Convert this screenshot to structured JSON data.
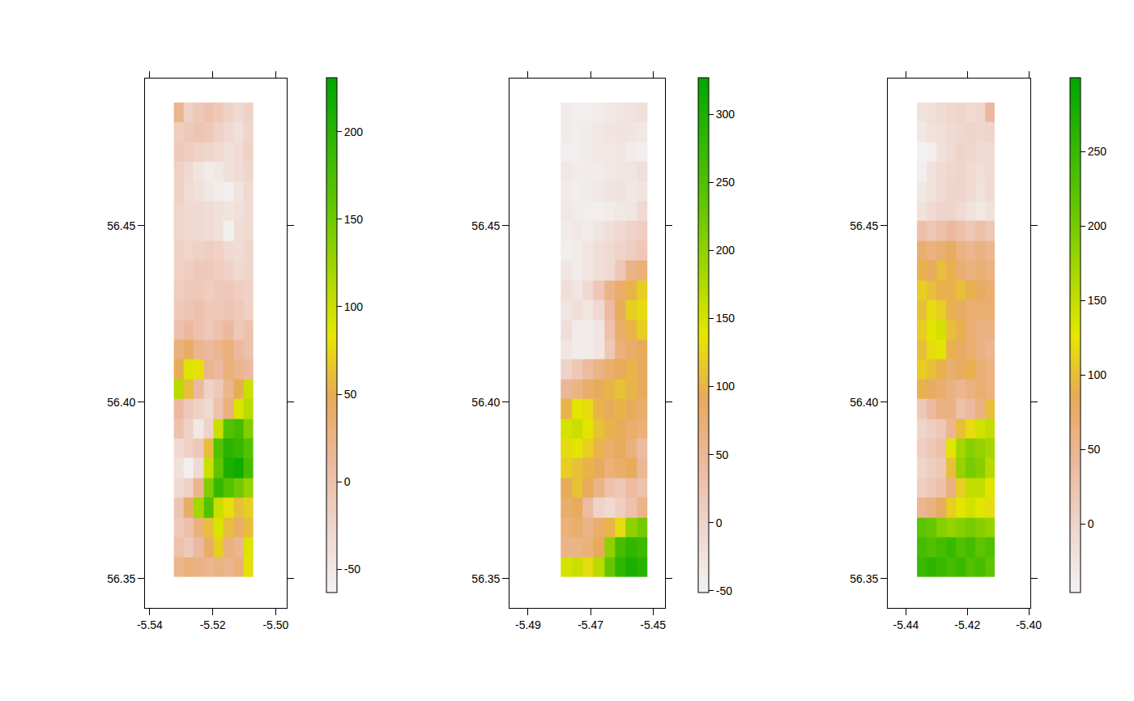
{
  "chart_data": [
    {
      "type": "heatmap",
      "x": [
        -5.5308,
        -5.5277,
        -5.5245,
        -5.5213,
        -5.5182,
        -5.515,
        -5.5118,
        -5.5087
      ],
      "y": [
        56.3533,
        56.3589,
        56.3645,
        56.3701,
        56.3757,
        56.3813,
        56.3869,
        56.3925,
        56.3981,
        56.4037,
        56.4093,
        56.4149,
        56.4205,
        56.4261,
        56.4317,
        56.4373,
        56.4429,
        56.4485,
        56.4541,
        56.4597,
        56.4653,
        56.4709,
        56.4765,
        56.4821
      ],
      "z": [
        [
          20,
          30,
          25,
          20,
          25,
          20,
          30,
          80
        ],
        [
          0,
          -10,
          10,
          40,
          70,
          30,
          20,
          90
        ],
        [
          -10,
          0,
          30,
          60,
          90,
          60,
          40,
          60
        ],
        [
          -5,
          40,
          120,
          170,
          100,
          80,
          60,
          70
        ],
        [
          -30,
          -20,
          20,
          140,
          190,
          170,
          150,
          130
        ],
        [
          -40,
          -60,
          -30,
          100,
          160,
          210,
          220,
          180
        ],
        [
          -30,
          -20,
          -10,
          60,
          170,
          200,
          190,
          170
        ],
        [
          0,
          -20,
          -50,
          -20,
          100,
          170,
          180,
          140
        ],
        [
          10,
          -10,
          -20,
          -30,
          0,
          30,
          90,
          110
        ],
        [
          110,
          60,
          10,
          -20,
          -10,
          20,
          50,
          100
        ],
        [
          50,
          90,
          80,
          20,
          10,
          30,
          20,
          10
        ],
        [
          30,
          40,
          20,
          10,
          20,
          30,
          10,
          0
        ],
        [
          0,
          10,
          0,
          -10,
          0,
          10,
          -10,
          0
        ],
        [
          -10,
          -5,
          0,
          -10,
          -10,
          -5,
          -10,
          -20
        ],
        [
          -15,
          -10,
          -10,
          -15,
          -10,
          -10,
          -15,
          -20
        ],
        [
          -20,
          -15,
          -10,
          -10,
          -15,
          -20,
          -30,
          -25
        ],
        [
          -20,
          -25,
          -20,
          -15,
          -20,
          -30,
          -35,
          -25
        ],
        [
          -25,
          -30,
          -30,
          -35,
          -40,
          -60,
          -35,
          -30
        ],
        [
          -25,
          -30,
          -30,
          -35,
          -40,
          -45,
          -40,
          -30
        ],
        [
          -20,
          -35,
          -40,
          -50,
          -55,
          -60,
          -45,
          -30
        ],
        [
          -20,
          -30,
          -45,
          -55,
          -50,
          -40,
          -35,
          -25
        ],
        [
          -10,
          -15,
          -20,
          -25,
          -30,
          -40,
          -35,
          -20
        ],
        [
          -15,
          -10,
          -5,
          -10,
          -20,
          -30,
          -40,
          -25
        ],
        [
          20,
          -20,
          -10,
          0,
          -10,
          -20,
          -30,
          -20
        ]
      ],
      "xlim": [
        -5.5415,
        -5.4965
      ],
      "ylim": [
        56.3417,
        56.4917
      ],
      "xticks": [
        -5.54,
        -5.52,
        {
          "value": -5.5,
          "label": "-5.50"
        }
      ],
      "yticks": [
        56.35,
        {
          "value": 56.4,
          "label": "56.40"
        },
        56.45
      ],
      "zlim": [
        -63,
        231
      ],
      "zticks": [
        -50,
        0,
        50,
        100,
        150,
        200
      ]
    },
    {
      "type": "heatmap",
      "x": [
        -5.4778,
        -5.4743,
        -5.4709,
        -5.4674,
        -5.4639,
        -5.4605,
        -5.457,
        -5.4535
      ],
      "y": [
        56.3533,
        56.3589,
        56.3645,
        56.3701,
        56.3757,
        56.3813,
        56.3869,
        56.3925,
        56.3981,
        56.4037,
        56.4093,
        56.4149,
        56.4205,
        56.4261,
        56.4317,
        56.4373,
        56.4429,
        56.4485,
        56.4541,
        56.4597,
        56.4653,
        56.4709,
        56.4765,
        56.4821
      ],
      "z": [
        [
          150,
          160,
          130,
          170,
          230,
          280,
          300,
          290
        ],
        [
          60,
          60,
          70,
          90,
          200,
          260,
          280,
          270
        ],
        [
          70,
          80,
          60,
          80,
          100,
          130,
          200,
          220
        ],
        [
          80,
          90,
          40,
          0,
          -10,
          10,
          30,
          60
        ],
        [
          90,
          110,
          90,
          60,
          30,
          20,
          40,
          30
        ],
        [
          120,
          110,
          100,
          90,
          70,
          80,
          90,
          50
        ],
        [
          130,
          140,
          120,
          100,
          80,
          90,
          70,
          40
        ],
        [
          150,
          160,
          140,
          110,
          100,
          90,
          80,
          70
        ],
        [
          100,
          140,
          130,
          100,
          90,
          100,
          90,
          80
        ],
        [
          50,
          60,
          80,
          90,
          100,
          110,
          100,
          90
        ],
        [
          0,
          20,
          40,
          60,
          80,
          90,
          100,
          90
        ],
        [
          -30,
          -40,
          -40,
          -30,
          20,
          70,
          80,
          90
        ],
        [
          -20,
          -40,
          -40,
          -30,
          30,
          80,
          100,
          120
        ],
        [
          -30,
          -20,
          -30,
          -10,
          40,
          90,
          120,
          130
        ],
        [
          -20,
          -30,
          -10,
          20,
          60,
          80,
          100,
          120
        ],
        [
          -30,
          -40,
          -30,
          -20,
          -10,
          20,
          60,
          70
        ],
        [
          -45,
          -40,
          -30,
          -20,
          -10,
          0,
          10,
          20
        ],
        [
          -40,
          -35,
          -40,
          -30,
          -20,
          -10,
          0,
          10
        ],
        [
          -35,
          -40,
          -45,
          -45,
          -40,
          -35,
          -30,
          -10
        ],
        [
          -40,
          -45,
          -40,
          -35,
          -30,
          -25,
          -35,
          -30
        ],
        [
          -35,
          -40,
          -40,
          -40,
          -35,
          -30,
          -30,
          -20
        ],
        [
          -45,
          -45,
          -40,
          -35,
          -35,
          -30,
          -40,
          -45
        ],
        [
          -40,
          -45,
          -40,
          -35,
          -30,
          -25,
          -30,
          -35
        ],
        [
          -40,
          -45,
          -45,
          -40,
          -35,
          -30,
          -25,
          -20
        ]
      ],
      "xlim": [
        -5.4959,
        -5.4462
      ],
      "ylim": [
        56.3417,
        56.4917
      ],
      "xticks": [
        -5.49,
        -5.47,
        -5.45
      ],
      "yticks": [
        56.35,
        {
          "value": 56.4,
          "label": "56.40"
        },
        56.45
      ],
      "zlim": [
        -51,
        327
      ],
      "zticks": [
        -50,
        0,
        50,
        100,
        150,
        200,
        250,
        300
      ]
    },
    {
      "type": "heatmap",
      "x": [
        -5.4348,
        -5.4316,
        -5.4284,
        -5.4253,
        -5.4221,
        -5.4189,
        -5.4157,
        -5.4126
      ],
      "y": [
        56.3533,
        56.3589,
        56.3645,
        56.3701,
        56.3757,
        56.3813,
        56.3869,
        56.3925,
        56.3981,
        56.4037,
        56.4093,
        56.4149,
        56.4205,
        56.4261,
        56.4317,
        56.4373,
        56.4429,
        56.4485,
        56.4541,
        56.4597,
        56.4653,
        56.4709,
        56.4765,
        56.4821
      ],
      "z": [
        [
          250,
          260,
          250,
          240,
          250,
          230,
          240,
          220
        ],
        [
          240,
          230,
          240,
          250,
          230,
          240,
          220,
          230
        ],
        [
          220,
          210,
          190,
          180,
          190,
          200,
          190,
          180
        ],
        [
          50,
          60,
          80,
          110,
          130,
          140,
          130,
          120
        ],
        [
          10,
          20,
          30,
          60,
          110,
          150,
          150,
          130
        ],
        [
          0,
          10,
          20,
          100,
          180,
          200,
          190,
          160
        ],
        [
          10,
          20,
          30,
          130,
          170,
          190,
          180,
          170
        ],
        [
          0,
          10,
          20,
          50,
          100,
          120,
          140,
          150
        ],
        [
          20,
          40,
          60,
          60,
          30,
          40,
          60,
          100
        ],
        [
          90,
          80,
          70,
          60,
          50,
          60,
          70,
          60
        ],
        [
          110,
          100,
          90,
          70,
          80,
          90,
          70,
          60
        ],
        [
          100,
          120,
          130,
          90,
          80,
          70,
          60,
          50
        ],
        [
          110,
          130,
          140,
          100,
          90,
          70,
          60,
          60
        ],
        [
          100,
          120,
          110,
          90,
          80,
          70,
          70,
          70
        ],
        [
          110,
          100,
          90,
          90,
          100,
          90,
          80,
          70
        ],
        [
          90,
          80,
          100,
          90,
          70,
          60,
          70,
          60
        ],
        [
          70,
          60,
          70,
          80,
          60,
          50,
          60,
          50
        ],
        [
          30,
          20,
          30,
          40,
          30,
          20,
          30,
          20
        ],
        [
          -20,
          -10,
          0,
          0,
          -10,
          -20,
          -30,
          -20
        ],
        [
          -30,
          -20,
          -10,
          0,
          0,
          -10,
          -20,
          -10
        ],
        [
          -40,
          -20,
          -10,
          -5,
          0,
          -10,
          -15,
          -10
        ],
        [
          -45,
          -40,
          -20,
          -10,
          0,
          -5,
          -10,
          -10
        ],
        [
          -30,
          -20,
          -15,
          -10,
          -5,
          0,
          -5,
          0
        ],
        [
          -20,
          -15,
          -10,
          -5,
          0,
          -10,
          -5,
          40
        ]
      ],
      "xlim": [
        -5.4459,
        -5.3995
      ],
      "ylim": [
        56.3417,
        56.4917
      ],
      "xticks": [
        -5.44,
        -5.42,
        {
          "value": -5.4,
          "label": "-5.40"
        }
      ],
      "yticks": [
        56.35,
        {
          "value": 56.4,
          "label": "56.40"
        },
        56.45
      ],
      "zlim": [
        -46,
        300
      ],
      "zticks": [
        0,
        50,
        100,
        150,
        200,
        250
      ]
    }
  ]
}
